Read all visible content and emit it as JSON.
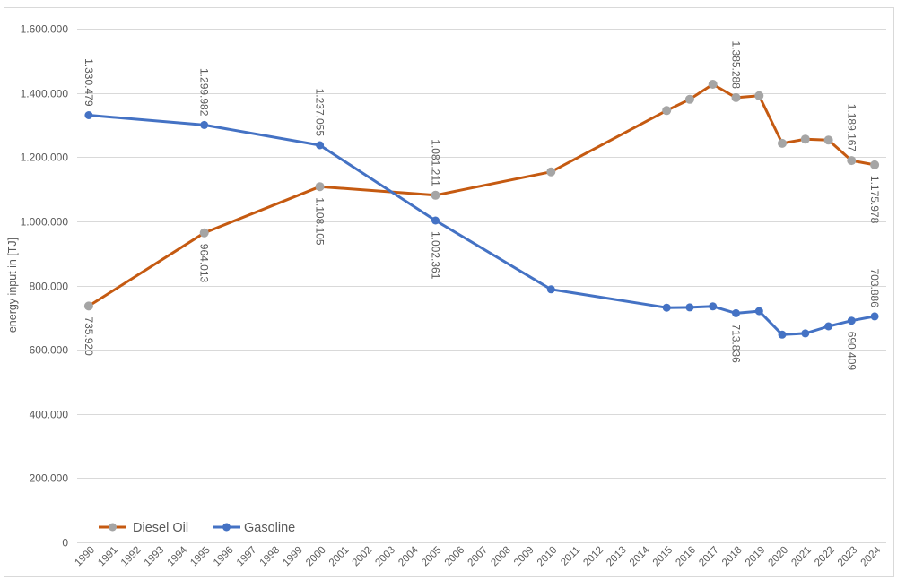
{
  "chart": {
    "background_color": "#ffffff",
    "border_color": "#D9D9D9",
    "gridline_color": "#D9D9D9",
    "axis_line_color": "#D9D9D9",
    "text_color": "#595959"
  },
  "chart_data": {
    "type": "line",
    "title": "",
    "xlabel": "",
    "ylabel": "energy input in [TJ]",
    "ylim": [
      0,
      1600000
    ],
    "ytick_step": 200000,
    "ytick_labels": [
      "0",
      "200.000",
      "400.000",
      "600.000",
      "800.000",
      "1.000.000",
      "1.200.000",
      "1.400.000",
      "1.600.000"
    ],
    "grid": "horizontal",
    "legend_position": "bottom-left",
    "categories": [
      "1990",
      "1991",
      "1992",
      "1993",
      "1994",
      "1995",
      "1996",
      "1997",
      "1998",
      "1999",
      "2000",
      "2001",
      "2002",
      "2003",
      "2004",
      "2005",
      "2006",
      "2007",
      "2008",
      "2009",
      "2010",
      "2011",
      "2012",
      "2013",
      "2014",
      "2015",
      "2016",
      "2017",
      "2018",
      "2019",
      "2020",
      "2021",
      "2022",
      "2023",
      "2024"
    ],
    "series": [
      {
        "name": "Diesel Oil",
        "line_color": "#C55A11",
        "marker_color": "#A5A5A5",
        "points": [
          {
            "year": "1990",
            "value": 735920,
            "label": "735.920",
            "label_pos": "below"
          },
          {
            "year": "1995",
            "value": 964013,
            "label": "964.013",
            "label_pos": "below"
          },
          {
            "year": "2000",
            "value": 1108105,
            "label": "1.108.105",
            "label_pos": "below"
          },
          {
            "year": "2005",
            "value": 1081211,
            "label": "1.081.211",
            "label_pos": "above"
          },
          {
            "year": "2010",
            "value": 1154000
          },
          {
            "year": "2015",
            "value": 1345000
          },
          {
            "year": "2016",
            "value": 1380000
          },
          {
            "year": "2017",
            "value": 1427000
          },
          {
            "year": "2018",
            "value": 1385288,
            "label": "1.385.288",
            "label_pos": "above"
          },
          {
            "year": "2019",
            "value": 1391000
          },
          {
            "year": "2020",
            "value": 1243000
          },
          {
            "year": "2021",
            "value": 1256000
          },
          {
            "year": "2022",
            "value": 1253000
          },
          {
            "year": "2023",
            "value": 1189167,
            "label": "1.189.167",
            "label_pos": "above"
          },
          {
            "year": "2024",
            "value": 1175978,
            "label": "1.175.978",
            "label_pos": "below"
          }
        ]
      },
      {
        "name": "Gasoline",
        "line_color": "#4472C4",
        "marker_color": "#4472C4",
        "points": [
          {
            "year": "1990",
            "value": 1330479,
            "label": "1.330.479",
            "label_pos": "above"
          },
          {
            "year": "1995",
            "value": 1299982,
            "label": "1.299.982",
            "label_pos": "above"
          },
          {
            "year": "2000",
            "value": 1237055,
            "label": "1.237.055",
            "label_pos": "above"
          },
          {
            "year": "2005",
            "value": 1002361,
            "label": "1.002.361",
            "label_pos": "below"
          },
          {
            "year": "2010",
            "value": 788000
          },
          {
            "year": "2015",
            "value": 731000
          },
          {
            "year": "2016",
            "value": 732000
          },
          {
            "year": "2017",
            "value": 735000
          },
          {
            "year": "2018",
            "value": 713836,
            "label": "713.836",
            "label_pos": "below"
          },
          {
            "year": "2019",
            "value": 720000
          },
          {
            "year": "2020",
            "value": 647000
          },
          {
            "year": "2021",
            "value": 651000
          },
          {
            "year": "2022",
            "value": 673000
          },
          {
            "year": "2023",
            "value": 690409,
            "label": "690.409",
            "label_pos": "below"
          },
          {
            "year": "2024",
            "value": 703886,
            "label": "703.886",
            "label_pos": "above"
          }
        ]
      }
    ]
  }
}
